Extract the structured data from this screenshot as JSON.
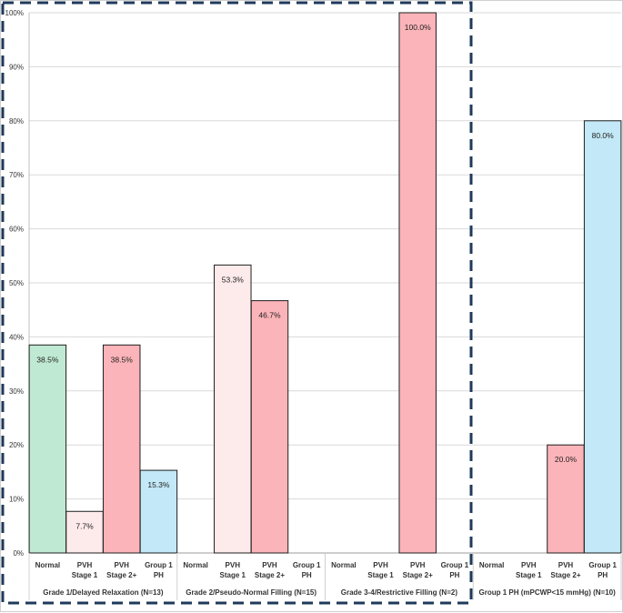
{
  "colors": {
    "normal": "#bfe9d3",
    "pvh_stage1": "#fdeaea",
    "pvh_stage2": "#fbb4b9",
    "group1_ph": "#c3e8f7",
    "bar_stroke": "#1f1f1f",
    "grid": "#d9d9d9",
    "highlight_box": "#1f3a5a",
    "frame": "#cfcfcf"
  },
  "chart_data": {
    "type": "bar",
    "ylim": [
      0,
      100
    ],
    "y_ticks": [
      "0%",
      "10%",
      "20%",
      "30%",
      "40%",
      "50%",
      "60%",
      "70%",
      "80%",
      "90%",
      "100%"
    ],
    "categories": [
      "Normal",
      "PVH Stage 1",
      "PVH Stage 2+",
      "Group 1 PH"
    ],
    "category_labels": [
      [
        "Normal"
      ],
      [
        "PVH",
        "Stage 1"
      ],
      [
        "PVH",
        "Stage 2+"
      ],
      [
        "Group 1",
        "PH"
      ]
    ],
    "series_keys": [
      "normal",
      "pvh_stage1",
      "pvh_stage2",
      "group1_ph"
    ],
    "groups": [
      {
        "name": "Grade 1/Delayed Relaxation (N=13)",
        "values": [
          38.5,
          7.7,
          38.5,
          15.3
        ],
        "labels": [
          "38.5%",
          "7.7%",
          "38.5%",
          "15.3%"
        ]
      },
      {
        "name": "Grade 2/Pseudo-Normal Filling (N=15)",
        "values": [
          0,
          53.3,
          46.7,
          0
        ],
        "labels": [
          "",
          "53.3%",
          "46.7%",
          ""
        ]
      },
      {
        "name": "Grade 3-4/Restrictive Filling (N=2)",
        "values": [
          0,
          0,
          100.0,
          0
        ],
        "labels": [
          "",
          "",
          "100.0%",
          ""
        ]
      },
      {
        "name": "Group 1 PH (mPCWP<15 mmHg) (N=10)",
        "values": [
          0,
          0,
          20.0,
          80.0
        ],
        "labels": [
          "",
          "",
          "20.0%",
          "80.0%"
        ]
      }
    ],
    "highlight": "first three groups outlined with dashed box"
  }
}
